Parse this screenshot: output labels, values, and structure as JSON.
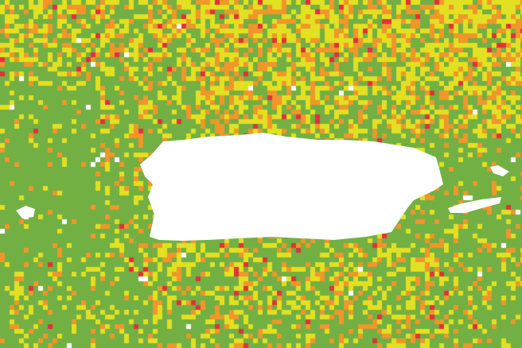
{
  "map": {
    "palette": {
      "low": "#72b043",
      "moderate": "#e3e021",
      "high": "#f0962a",
      "very_high": "#e3303a",
      "no_data": "#ffffff",
      "land": "#ffffff"
    }
  }
}
